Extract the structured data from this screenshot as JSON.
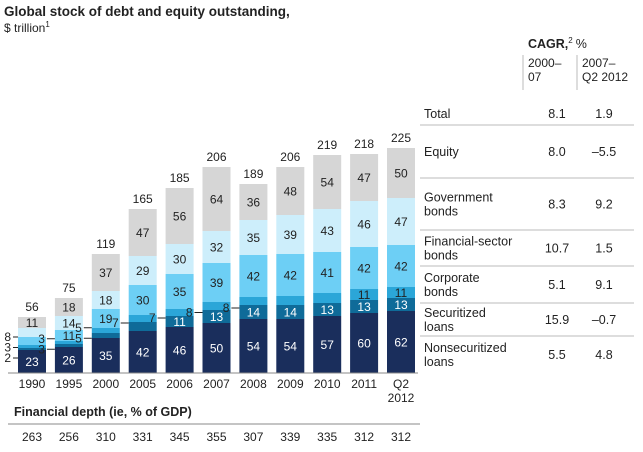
{
  "chart_data": {
    "type": "bar",
    "stacked": true,
    "title": "Global stock of debt and equity outstanding,",
    "unit_text": "$ trillion",
    "unit_note": "1",
    "categories": [
      {
        "line1": "1990",
        "line2": ""
      },
      {
        "line1": "1995",
        "line2": ""
      },
      {
        "line1": "2000",
        "line2": ""
      },
      {
        "line1": "2005",
        "line2": ""
      },
      {
        "line1": "2006",
        "line2": ""
      },
      {
        "line1": "2007",
        "line2": ""
      },
      {
        "line1": "2008",
        "line2": ""
      },
      {
        "line1": "2009",
        "line2": ""
      },
      {
        "line1": "2010",
        "line2": ""
      },
      {
        "line1": "2011",
        "line2": ""
      },
      {
        "line1": "Q2",
        "line2": "2012"
      }
    ],
    "series": [
      {
        "key": "nonsec",
        "name_lines": [
          "Nonsecuritized",
          "loans"
        ],
        "color": "#1a2e5c",
        "text_color": "#ffffff",
        "values": [
          23,
          26,
          35,
          42,
          46,
          50,
          54,
          54,
          57,
          60,
          62
        ],
        "cagr": [
          "5.5",
          "4.8"
        ]
      },
      {
        "key": "sec",
        "name_lines": [
          "Securitized",
          "loans"
        ],
        "color": "#0f6b99",
        "text_color": "#ffffff",
        "values": [
          2,
          3,
          5,
          9,
          11,
          13,
          14,
          14,
          13,
          13,
          13
        ],
        "cagr": [
          "15.9",
          "–0.7"
        ]
      },
      {
        "key": "corp",
        "name_lines": [
          "Corporate",
          "bonds"
        ],
        "color": "#2ba6d8",
        "text_color": "#222222",
        "values": [
          3,
          3,
          5,
          7,
          7,
          8,
          8,
          9,
          10,
          11,
          11
        ],
        "cagr": [
          "5.1",
          "9.1"
        ]
      },
      {
        "key": "fin",
        "name_lines": [
          "Financial-sector",
          "bonds"
        ],
        "color": "#6dcff5",
        "text_color": "#222222",
        "values": [
          8,
          11,
          19,
          30,
          35,
          39,
          42,
          42,
          41,
          42,
          42
        ],
        "cagr": [
          "10.7",
          "1.5"
        ]
      },
      {
        "key": "gov",
        "name_lines": [
          "Government",
          "bonds"
        ],
        "color": "#cdeefb",
        "text_color": "#222222",
        "values": [
          9,
          14,
          18,
          29,
          30,
          32,
          35,
          39,
          43,
          46,
          47
        ],
        "cagr": [
          "8.3",
          "9.2"
        ]
      },
      {
        "key": "equity",
        "name_lines": [
          "Equity"
        ],
        "color": "#d6d6d6",
        "text_color": "#222222",
        "values": [
          11,
          18,
          37,
          47,
          56,
          64,
          36,
          48,
          54,
          47,
          50
        ],
        "cagr": [
          "8.0",
          "–5.5"
        ]
      }
    ],
    "totals": [
      56,
      75,
      119,
      165,
      185,
      206,
      189,
      206,
      219,
      218,
      225
    ],
    "total_row": {
      "name_lines": [
        "Total"
      ],
      "cagr": [
        "8.1",
        "1.9"
      ]
    },
    "outside_labels": [
      {
        "bar": 0,
        "values": [
          "8",
          "3",
          "2"
        ]
      },
      {
        "bar": 1,
        "values": [
          "3",
          "3"
        ]
      },
      {
        "bar": 2,
        "values": [
          "5",
          "5"
        ]
      },
      {
        "bar": 3,
        "values": [
          "7"
        ]
      },
      {
        "bar": 4,
        "values": [
          "7"
        ]
      },
      {
        "bar": 5,
        "values": [
          "8"
        ]
      },
      {
        "bar": 6,
        "values": [
          "8"
        ]
      }
    ],
    "cagr_header": {
      "label": "CAGR,",
      "note": "2",
      "unit": "%",
      "col1": [
        "2000–",
        "07"
      ],
      "col2": [
        "2007–",
        "Q2 2012"
      ]
    },
    "financial_depth": {
      "label": "Financial depth (ie, % of GDP)",
      "values": [
        263,
        256,
        310,
        331,
        345,
        355,
        307,
        339,
        335,
        312,
        312
      ]
    },
    "ylim": [
      0,
      225
    ],
    "xlabel": "",
    "ylabel": ""
  }
}
